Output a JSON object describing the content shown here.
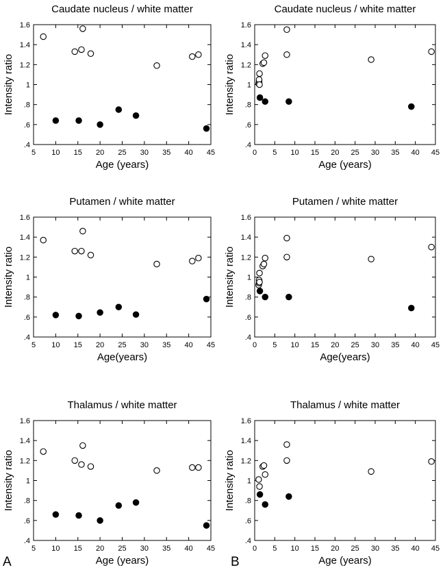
{
  "figure": {
    "panel_letters": [
      "A",
      "B"
    ]
  },
  "chart_data": [
    {
      "type": "scatter",
      "title": "Caudate nucleus / white matter",
      "xlabel": "Age (years)",
      "ylabel": "Intensity ratio",
      "xlim": [
        5,
        45
      ],
      "ylim": [
        0.4,
        1.6
      ],
      "xticks": [
        "5",
        "10",
        "15",
        "20",
        "25",
        "30",
        "35",
        "40",
        "45"
      ],
      "yticks": [
        ".4",
        ".6",
        ".8",
        "1",
        "1.2",
        "1.4",
        "1.6"
      ],
      "series": [
        {
          "marker": "open-circle",
          "x": [
            7.2,
            14.3,
            15.8,
            16.1,
            17.9,
            32.8,
            40.8,
            42.2
          ],
          "y": [
            1.48,
            1.33,
            1.35,
            1.56,
            1.31,
            1.19,
            1.28,
            1.3
          ]
        },
        {
          "marker": "filled-circle",
          "x": [
            10,
            15.2,
            20,
            24.2,
            28.1,
            44
          ],
          "y": [
            0.64,
            0.64,
            0.6,
            0.75,
            0.69,
            0.56
          ]
        }
      ]
    },
    {
      "type": "scatter",
      "title": "Caudate nucleus / white matter",
      "xlabel": "Age (years)",
      "ylabel": "Intensity ratio",
      "xlim": [
        0,
        45
      ],
      "ylim": [
        0.4,
        1.6
      ],
      "xticks": [
        "0",
        "5",
        "10",
        "15",
        "20",
        "25",
        "30",
        "35",
        "40",
        "45"
      ],
      "yticks": [
        ".4",
        ".6",
        ".8",
        "1",
        "1.2",
        "1.4",
        "1.6"
      ],
      "series": [
        {
          "marker": "open-circle",
          "x": [
            1.0,
            1.1,
            1.1,
            1.2,
            1.2,
            2.0,
            2.3,
            2.6,
            8.0,
            8.0,
            29.0,
            44.0
          ],
          "y": [
            1.01,
            1.03,
            1.05,
            1.11,
            1.0,
            1.21,
            1.22,
            1.29,
            1.55,
            1.3,
            1.25,
            1.33
          ]
        },
        {
          "marker": "filled-circle",
          "x": [
            1.3,
            2.6,
            8.5,
            39.0
          ],
          "y": [
            0.87,
            0.83,
            0.83,
            0.78
          ]
        }
      ]
    },
    {
      "type": "scatter",
      "title": "Putamen / white matter",
      "xlabel": "Age(years)",
      "ylabel": "Intensity ratio",
      "xlim": [
        5,
        45
      ],
      "ylim": [
        0.4,
        1.6
      ],
      "xticks": [
        "5",
        "10",
        "15",
        "20",
        "25",
        "30",
        "35",
        "40",
        "45"
      ],
      "yticks": [
        ".4",
        ".6",
        ".8",
        "1",
        "1.2",
        "1.4",
        "1.6"
      ],
      "series": [
        {
          "marker": "open-circle",
          "x": [
            7.2,
            14.3,
            15.8,
            16.1,
            17.9,
            32.8,
            40.8,
            42.2
          ],
          "y": [
            1.37,
            1.26,
            1.26,
            1.46,
            1.22,
            1.13,
            1.16,
            1.19
          ]
        },
        {
          "marker": "filled-circle",
          "x": [
            10,
            15.2,
            20,
            24.2,
            28.1,
            44
          ],
          "y": [
            0.62,
            0.61,
            0.645,
            0.7,
            0.625,
            0.78
          ]
        }
      ]
    },
    {
      "type": "scatter",
      "title": "Putamen / white matter",
      "xlabel": "Age(years)",
      "ylabel": "Intensity ratio",
      "xlim": [
        0,
        45
      ],
      "ylim": [
        0.4,
        1.6
      ],
      "xticks": [
        "0",
        "5",
        "10",
        "15",
        "20",
        "25",
        "30",
        "35",
        "40",
        "45"
      ],
      "yticks": [
        ".4",
        ".6",
        ".8",
        "1",
        "1.2",
        "1.4",
        "1.6"
      ],
      "series": [
        {
          "marker": "open-circle",
          "x": [
            1.0,
            1.1,
            1.1,
            1.2,
            1.2,
            2.0,
            2.3,
            2.6,
            8.0,
            8.0,
            29.0,
            44.0
          ],
          "y": [
            0.92,
            0.94,
            0.97,
            1.04,
            0.95,
            1.11,
            1.13,
            1.19,
            1.39,
            1.2,
            1.18,
            1.3
          ]
        },
        {
          "marker": "filled-circle",
          "x": [
            1.3,
            2.6,
            8.5,
            39.0
          ],
          "y": [
            0.86,
            0.8,
            0.8,
            0.69
          ]
        }
      ]
    },
    {
      "type": "scatter",
      "title": "Thalamus / white matter",
      "xlabel": "Age (years)",
      "ylabel": "Intensity ratio",
      "xlim": [
        5,
        45
      ],
      "ylim": [
        0.4,
        1.6
      ],
      "xticks": [
        "5",
        "10",
        "15",
        "20",
        "25",
        "30",
        "35",
        "40",
        "45"
      ],
      "yticks": [
        ".4",
        ".6",
        ".8",
        "1",
        "1.2",
        "1.4",
        "1.6"
      ],
      "series": [
        {
          "marker": "open-circle",
          "x": [
            7.2,
            14.3,
            15.8,
            16.1,
            17.9,
            32.8,
            40.8,
            42.2
          ],
          "y": [
            1.29,
            1.2,
            1.16,
            1.35,
            1.14,
            1.1,
            1.13,
            1.13
          ]
        },
        {
          "marker": "filled-circle",
          "x": [
            10,
            15.2,
            20,
            24.2,
            28.1,
            44
          ],
          "y": [
            0.66,
            0.65,
            0.6,
            0.75,
            0.78,
            0.55
          ]
        }
      ]
    },
    {
      "type": "scatter",
      "title": "Thalamus / white matter",
      "xlabel": "Age (years)",
      "ylabel": "Intensity ratio",
      "xlim": [
        0,
        45
      ],
      "ylim": [
        0.4,
        1.6
      ],
      "xticks": [
        "0",
        "5",
        "10",
        "15",
        "20",
        "25",
        "30",
        "35",
        "40",
        "45"
      ],
      "yticks": [
        ".4",
        ".6",
        ".8",
        "1",
        "1.2",
        "1.4",
        "1.6"
      ],
      "series": [
        {
          "marker": "open-circle",
          "x": [
            1.0,
            1.2,
            2.0,
            2.3,
            2.6,
            8.0,
            8.0,
            29.0,
            44.0
          ],
          "y": [
            1.01,
            0.94,
            1.14,
            1.15,
            1.06,
            1.36,
            1.2,
            1.09,
            1.19
          ]
        },
        {
          "marker": "filled-circle",
          "x": [
            1.3,
            2.6,
            8.5
          ],
          "y": [
            0.86,
            0.76,
            0.84
          ]
        }
      ]
    }
  ]
}
